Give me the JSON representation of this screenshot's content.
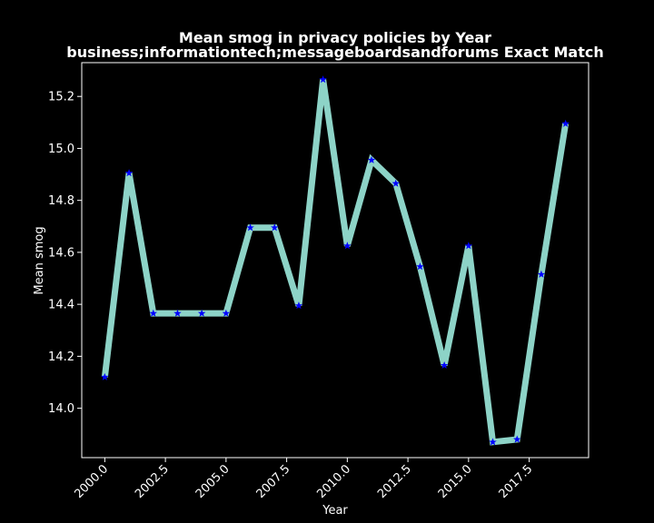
{
  "chart_data": {
    "type": "line",
    "title": "Mean smog in privacy policies by Year",
    "subtitle": "business;informationtech;messageboardsandforums Exact Match",
    "xlabel": "Year",
    "ylabel": "Mean smog",
    "xlim": [
      1999.05,
      2019.95
    ],
    "ylim": [
      13.81,
      15.33
    ],
    "x_ticks": [
      2000.0,
      2002.5,
      2005.0,
      2007.5,
      2010.0,
      2012.5,
      2015.0,
      2017.5
    ],
    "x_tick_labels": [
      "2000.0",
      "2002.5",
      "2005.0",
      "2007.5",
      "2010.0",
      "2012.5",
      "2015.0",
      "2017.5"
    ],
    "y_ticks": [
      14.0,
      14.2,
      14.4,
      14.6,
      14.8,
      15.0,
      15.2
    ],
    "y_tick_labels": [
      "14.0",
      "14.2",
      "14.4",
      "14.6",
      "14.8",
      "15.0",
      "15.2"
    ],
    "grid": false,
    "line_color": "#8dd3c7",
    "marker_color": "#0000ff",
    "marker": "star",
    "series": [
      {
        "x": [
          2000,
          2001,
          2002,
          2003,
          2004,
          2005,
          2006,
          2007,
          2008,
          2009,
          2010,
          2011,
          2012,
          2013,
          2014,
          2015,
          2016,
          2017,
          2018,
          2019
        ],
        "values": [
          14.12,
          14.905,
          14.365,
          14.365,
          14.365,
          14.365,
          14.695,
          14.695,
          14.395,
          15.265,
          14.625,
          14.955,
          14.865,
          14.545,
          14.165,
          14.625,
          13.87,
          13.88,
          14.515,
          15.095
        ]
      }
    ]
  }
}
